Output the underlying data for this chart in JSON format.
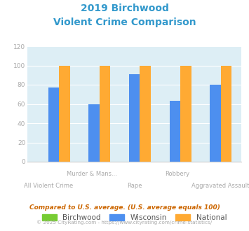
{
  "title_line1": "2019 Birchwood",
  "title_line2": "Violent Crime Comparison",
  "title_color": "#3399cc",
  "categories": [
    "All Violent Crime",
    "Murder & Mans...",
    "Rape",
    "Robbery",
    "Aggravated Assault"
  ],
  "birchwood_values": [
    0,
    0,
    0,
    0,
    0
  ],
  "wisconsin_values": [
    77,
    60,
    91,
    63,
    80
  ],
  "national_values": [
    100,
    100,
    100,
    100,
    100
  ],
  "birchwood_color": "#77cc33",
  "wisconsin_color": "#4d8fef",
  "national_color": "#ffaa33",
  "bg_color": "#ddeef5",
  "ylim": [
    0,
    120
  ],
  "yticks": [
    0,
    20,
    40,
    60,
    80,
    100,
    120
  ],
  "legend_labels": [
    "Birchwood",
    "Wisconsin",
    "National"
  ],
  "footnote1": "Compared to U.S. average. (U.S. average equals 100)",
  "footnote2": "© 2025 CityRating.com - https://www.cityrating.com/crime-statistics/",
  "footnote1_color": "#cc6600",
  "footnote2_color": "#aaaaaa",
  "tick_color": "#aaaaaa",
  "label_top": [
    "",
    "Murder & Mans...",
    "",
    "Robbery",
    ""
  ],
  "label_bot": [
    "All Violent Crime",
    "",
    "Rape",
    "",
    "Aggravated Assault"
  ]
}
